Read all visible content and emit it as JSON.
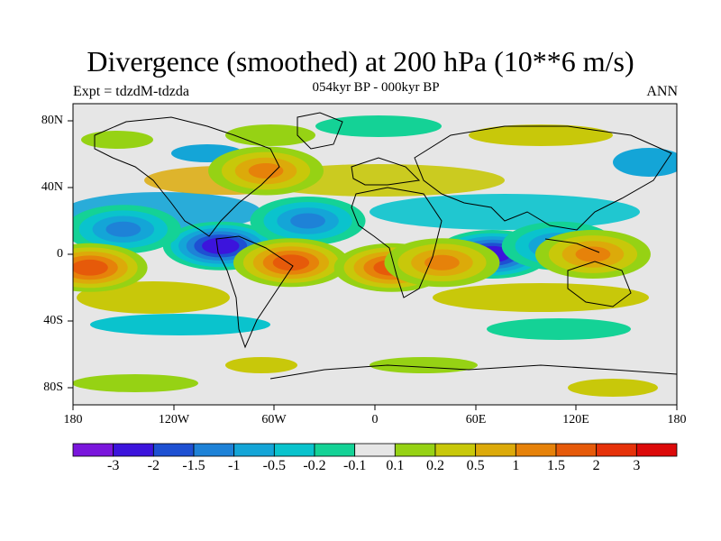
{
  "header": {
    "title": "Divergence (smoothed) at 200 hPa (10**6 m/s)",
    "left_label": "Expt = tdzdM-tdzda",
    "center_label": "054kyr BP - 000kyr BP",
    "right_label": "ANN"
  },
  "axes": {
    "x_ticks": [
      "180",
      "120W",
      "60W",
      "0",
      "60E",
      "120E",
      "180"
    ],
    "y_ticks": [
      "80N",
      "40N",
      "0",
      "40S",
      "80S"
    ]
  },
  "colorbar": {
    "labels": [
      "-3",
      "-2",
      "-1.5",
      "-1",
      "-0.5",
      "-0.2",
      "-0.1",
      "0.1",
      "0.2",
      "0.5",
      "1",
      "1.5",
      "2",
      "3"
    ],
    "colors": [
      "#7a16dc",
      "#3c14dc",
      "#1e50d2",
      "#1e82d7",
      "#14a5d7",
      "#0ac3cd",
      "#14d296",
      "#e6e6e6",
      "#96d214",
      "#c8c80a",
      "#dcaa0a",
      "#e6820a",
      "#e65a0a",
      "#e6320a",
      "#dc0a0a"
    ]
  },
  "map_features": {
    "negative_centers": [
      {
        "lon": -92,
        "lat": 5,
        "strength": 3
      },
      {
        "lon": 70,
        "lat": 0,
        "strength": 3
      },
      {
        "lon": -150,
        "lat": 15,
        "strength": 1
      },
      {
        "lon": 110,
        "lat": 5,
        "strength": 1
      },
      {
        "lon": -40,
        "lat": 20,
        "strength": 1
      }
    ],
    "positive_centers": [
      {
        "lon": -170,
        "lat": -8,
        "strength": 2
      },
      {
        "lon": -50,
        "lat": -5,
        "strength": 2
      },
      {
        "lon": 10,
        "lat": -8,
        "strength": 2
      },
      {
        "lon": 130,
        "lat": 0,
        "strength": 1
      },
      {
        "lon": 40,
        "lat": -5,
        "strength": 1
      },
      {
        "lon": -65,
        "lat": 50,
        "strength": 1
      }
    ]
  }
}
